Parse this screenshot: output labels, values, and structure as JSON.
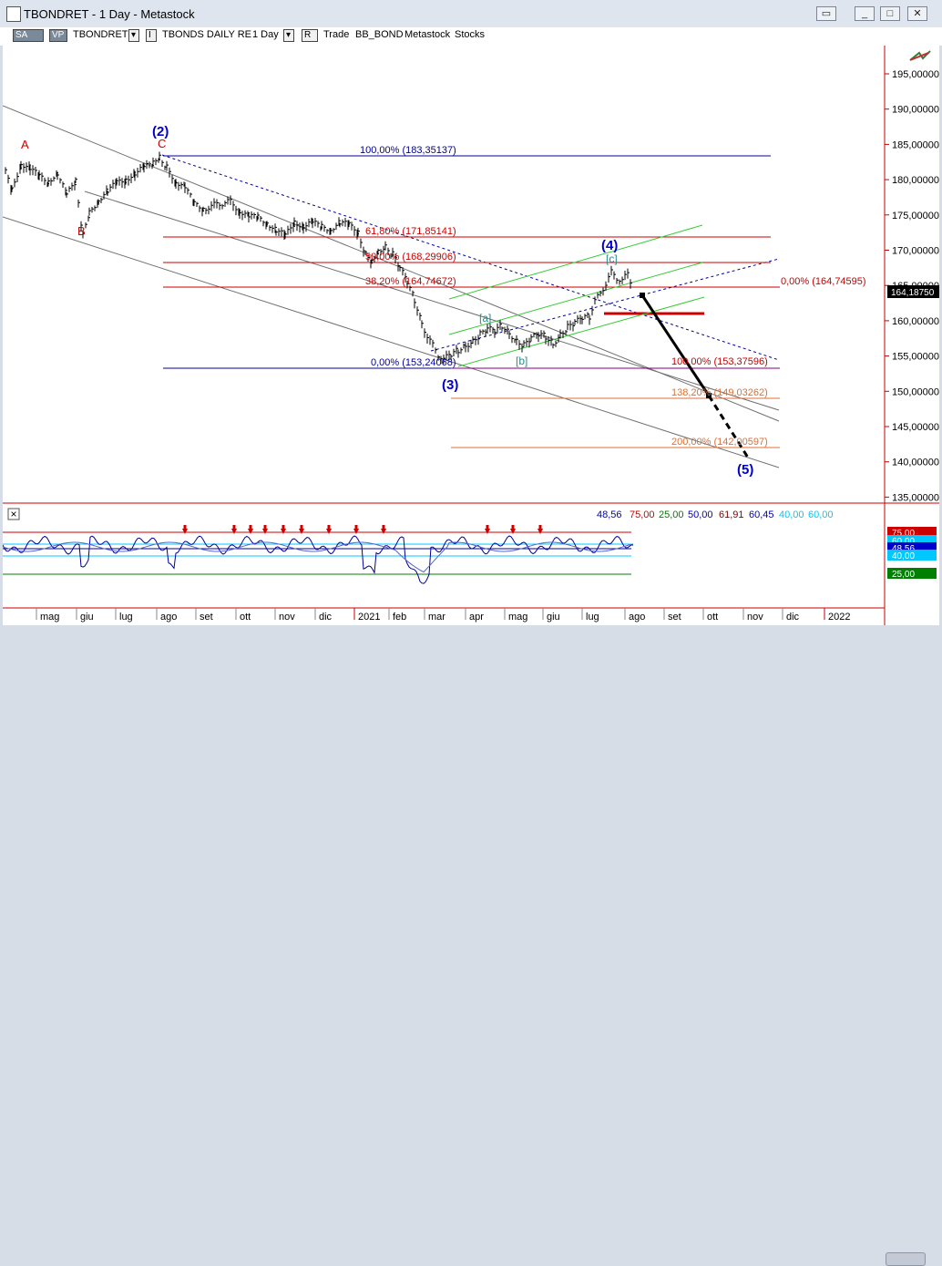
{
  "window": {
    "title": "TBONDRET - 1 Day - Metastock",
    "minimize": "_",
    "maximize": "□",
    "close": "✕"
  },
  "toolbar": {
    "sa": "SA",
    "vp": "VP",
    "symbol": "TBONDRET",
    "security_name": "TBONDS DAILY RE",
    "period": "1 Day",
    "mode": "R",
    "trade": "Trade",
    "template": "BB_BOND",
    "source": "Metastock",
    "class": "Stocks"
  },
  "price_axis": {
    "ticks": [
      "195,00000",
      "190,00000",
      "185,00000",
      "180,00000",
      "175,00000",
      "170,00000",
      "165,00000",
      "160,00000",
      "155,00000",
      "150,00000",
      "145,00000",
      "140,00000",
      "135,00000"
    ],
    "last_price": "164,18750"
  },
  "time_axis": {
    "labels": [
      "mag",
      "giu",
      "lug",
      "ago",
      "set",
      "ott",
      "nov",
      "dic",
      "2021",
      "feb",
      "mar",
      "apr",
      "mag",
      "giu",
      "lug",
      "ago",
      "set",
      "ott",
      "nov",
      "dic",
      "2022"
    ]
  },
  "wave_labels": {
    "A": "A",
    "B": "B",
    "C": "C",
    "w2": "(2)",
    "w3": "(3)",
    "w4": "(4)",
    "w5": "(5)",
    "a": "[a]",
    "b": "[b]",
    "c": "[c]"
  },
  "fib_labels": {
    "f100": "100,00% (183,35137)",
    "f618": "61,80% (171,85141)",
    "f500": "50,00% (168,29906)",
    "f382": "38,20% (164,74672)",
    "f0": "0,00% (153,24068)",
    "e0": "0,00% (164,74595)",
    "e100": "100,00% (153,37596)",
    "e1382": "138,20% (149,03262)",
    "e200": "200,00% (142,00597)"
  },
  "indicator": {
    "readout": [
      "48,56",
      "75,00",
      "25,00",
      "50,00",
      "61,91",
      "60,45",
      "40,00",
      "60,00"
    ],
    "readout_colors": [
      "#0000c0",
      "#d00000",
      "#008000",
      "#0000c0",
      "#800000",
      "#0000c0",
      "#00c8ff",
      "#00c8ff"
    ],
    "tags": [
      "75,00",
      "60,00",
      "48,56",
      "40,00",
      "25,00"
    ],
    "close_icon": "×"
  },
  "colors": {
    "red": "#cc0000",
    "blue": "#000099",
    "green": "#33cc33",
    "orange": "#e07030",
    "channel": "#707070"
  }
}
